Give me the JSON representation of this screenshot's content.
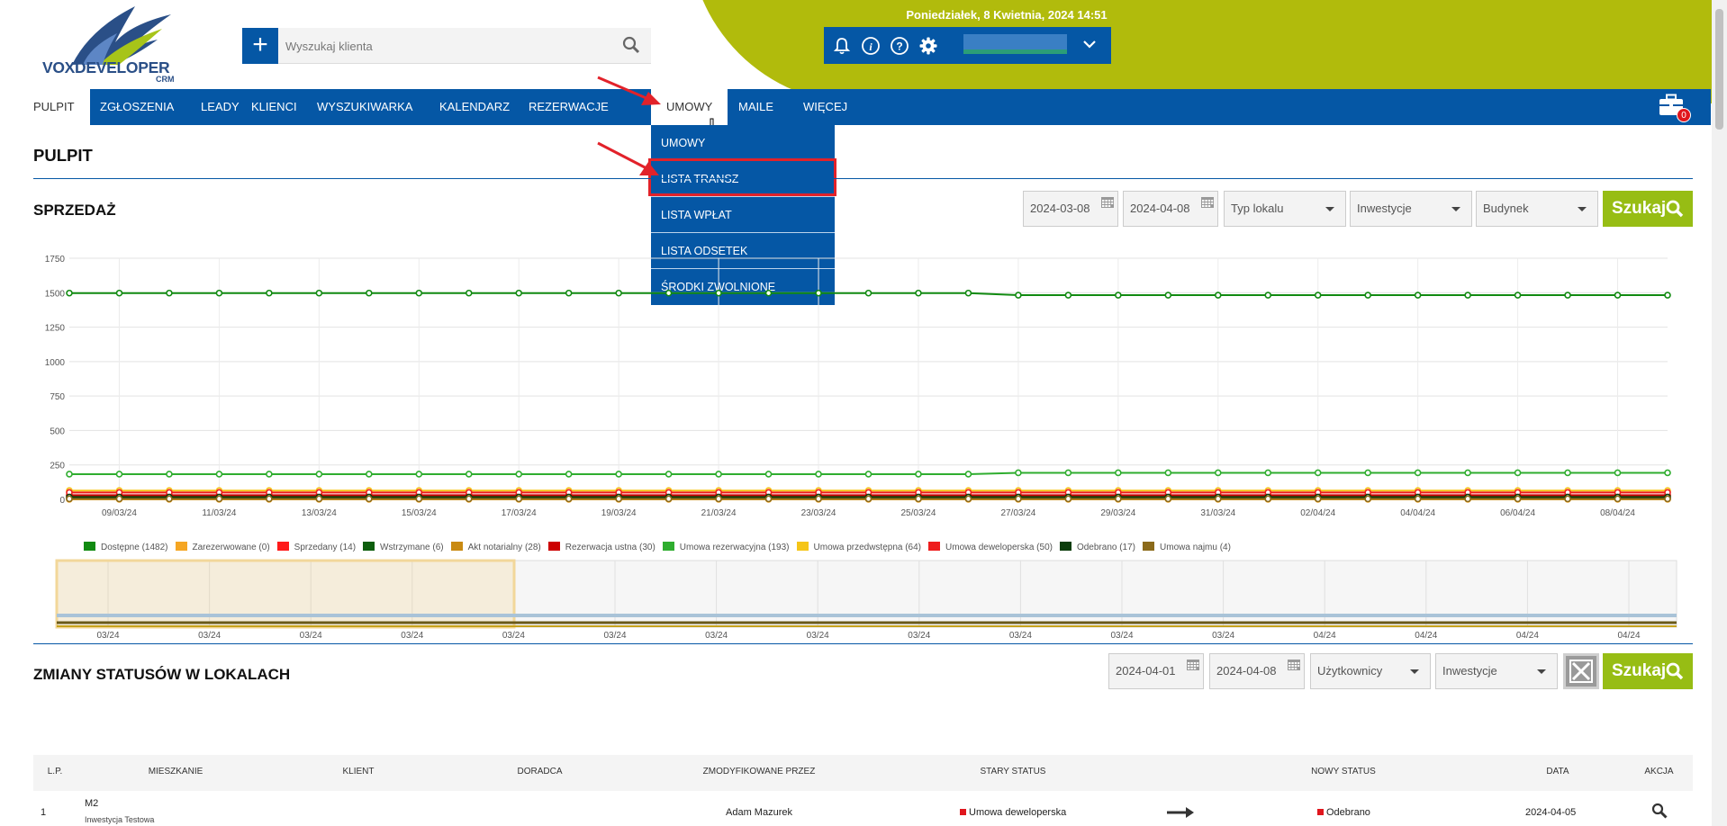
{
  "header": {
    "logo_text": "VOXDEVELOPER",
    "logo_sub": "CRM",
    "search_placeholder": "Wyszukaj klienta",
    "datetime": "Poniedziałek, 8 Kwietnia, 2024  14:51",
    "icons": [
      "bell-icon",
      "info-icon",
      "help-icon",
      "gear-icon"
    ],
    "colors": {
      "brand_blue": "#0557a5",
      "olive": "#b1bb0c",
      "button_green": "#97bd14"
    }
  },
  "nav": {
    "items": [
      "PULPIT",
      "ZGŁOSZENIA",
      "LEADY",
      "KLIENCI",
      "WYSZUKIWARKA",
      "KALENDARZ",
      "REZERWACJE",
      "UMOWY",
      "MAILE",
      "WIĘCEJ"
    ],
    "active": "PULPIT",
    "open": "UMOWY",
    "cart_count": "0"
  },
  "dropdown": {
    "items": [
      "UMOWY",
      "LISTA TRANSZ",
      "LISTA WPŁAT",
      "LISTA ODSETEK",
      "ŚRODKI ZWOLNIONE"
    ],
    "highlighted": "LISTA TRANSZ"
  },
  "page_title": "PULPIT",
  "sales": {
    "title": "SPRZEDAŻ",
    "date_from": "2024-03-08",
    "date_to": "2024-04-08",
    "filters": [
      "Typ lokalu",
      "Inwestycje",
      "Budynek"
    ],
    "search_label": "Szukaj"
  },
  "chart_data": {
    "type": "line",
    "title": "",
    "xlabel": "",
    "ylabel": "",
    "ylim": [
      0,
      1750
    ],
    "y_ticks": [
      "1750",
      "1500",
      "1250",
      "1000",
      "750",
      "500",
      "250",
      "0"
    ],
    "categories": [
      "09/03/24",
      "11/03/24",
      "13/03/24",
      "15/03/24",
      "17/03/24",
      "19/03/24",
      "21/03/24",
      "23/03/24",
      "25/03/24",
      "27/03/24",
      "29/03/24",
      "31/03/24",
      "02/04/24",
      "04/04/24",
      "06/04/24",
      "08/04/24"
    ],
    "navigator_labels": [
      "03/24",
      "03/24",
      "03/24",
      "03/24",
      "03/24",
      "03/24",
      "03/24",
      "03/24",
      "03/24",
      "03/24",
      "03/24",
      "03/24",
      "04/24",
      "04/24",
      "04/24",
      "04/24"
    ],
    "series": [
      {
        "name": "Dostępne (1482)",
        "color": "#118a11",
        "start": 1497,
        "end": 1482
      },
      {
        "name": "Zarezerwowane (0)",
        "color": "#f5a623",
        "start": 0,
        "end": 0
      },
      {
        "name": "Sprzedany (14)",
        "color": "#ff1a1a",
        "start": 14,
        "end": 14
      },
      {
        "name": "Wstrzymane (6)",
        "color": "#0d5e0d",
        "start": 6,
        "end": 6
      },
      {
        "name": "Akt notarialny (28)",
        "color": "#c98a12",
        "start": 28,
        "end": 28
      },
      {
        "name": "Rezerwacja ustna (30)",
        "color": "#cc0000",
        "start": 30,
        "end": 30
      },
      {
        "name": "Umowa rezerwacyjna (193)",
        "color": "#2fad2f",
        "start": 183,
        "end": 193
      },
      {
        "name": "Umowa przedwstępna (64)",
        "color": "#f5c518",
        "start": 64,
        "end": 64
      },
      {
        "name": "Umowa deweloperska (50)",
        "color": "#ee1c1c",
        "start": 50,
        "end": 50
      },
      {
        "name": "Odebrano (17)",
        "color": "#0b3d0b",
        "start": 17,
        "end": 17
      },
      {
        "name": "Umowa najmu (4)",
        "color": "#8b6a1a",
        "start": 4,
        "end": 4
      }
    ]
  },
  "status_changes": {
    "title": "ZMIANY STATUSÓW W LOKALACH",
    "date_from": "2024-04-01",
    "date_to": "2024-04-08",
    "filters": [
      "Użytkownicy",
      "Inwestycje"
    ],
    "search_label": "Szukaj",
    "columns": [
      "L.P.",
      "MIESZKANIE",
      "KLIENT",
      "DORADCA",
      "ZMODYFIKOWANE PRZEZ",
      "STARY STATUS",
      "NOWY STATUS",
      "DATA",
      "AKCJA"
    ],
    "rows": [
      {
        "lp": "1",
        "mieszkanie": "M2",
        "inwestycja": "Inwestycja Testowa",
        "klient": "",
        "doradca": "",
        "zmodyfikowane": "Adam Mazurek",
        "stary": "Umowa deweloperska",
        "nowy": "Odebrano",
        "data": "2024-04-05"
      }
    ]
  }
}
